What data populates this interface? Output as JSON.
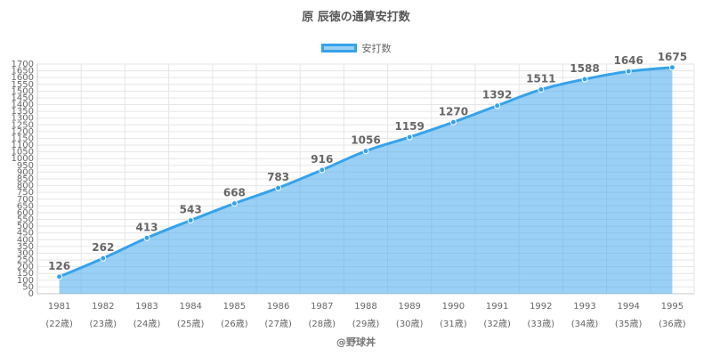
{
  "title": "原 辰徳の通算安打数",
  "credit": "@野球丼",
  "colors": {
    "line": "#36a2eb",
    "fill": "rgba(54,162,235,0.5)",
    "grid": "#e6e6e6"
  },
  "chart_data": {
    "type": "area",
    "title": "原 辰徳の通算安打数",
    "legend_position": "top",
    "grid": true,
    "ylim": [
      0,
      1700
    ],
    "ystep": 50,
    "categories": [
      "1981",
      "1982",
      "1983",
      "1984",
      "1985",
      "1986",
      "1987",
      "1988",
      "1989",
      "1990",
      "1991",
      "1992",
      "1993",
      "1994",
      "1995"
    ],
    "sublabels": [
      "(22歳)",
      "(23歳)",
      "(24歳)",
      "(25歳)",
      "(26歳)",
      "(27歳)",
      "(28歳)",
      "(29歳)",
      "(30歳)",
      "(31歳)",
      "(32歳)",
      "(33歳)",
      "(34歳)",
      "(35歳)",
      "(36歳)"
    ],
    "series": [
      {
        "name": "安打数",
        "values": [
          126,
          262,
          413,
          543,
          668,
          783,
          916,
          1056,
          1159,
          1270,
          1392,
          1511,
          1588,
          1646,
          1675
        ]
      }
    ]
  }
}
